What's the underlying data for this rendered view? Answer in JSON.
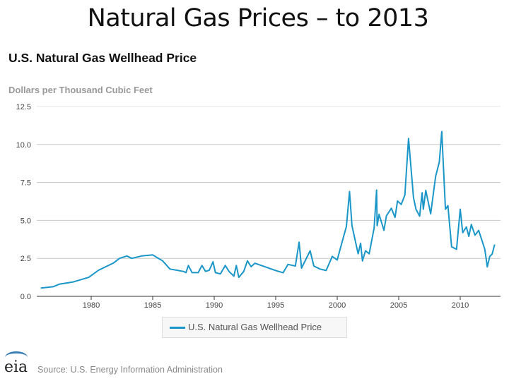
{
  "slide_title": "Natural Gas Prices – to 2013",
  "footer": {
    "logo_text": "eia",
    "source": "Source: U.S. Energy Information Administration"
  },
  "chart_data": {
    "type": "line",
    "title": "U.S. Natural Gas Wellhead Price",
    "ylabel": "Dollars per Thousand Cubic Feet",
    "xlabel": "",
    "xlim": [
      1976,
      2012.8
    ],
    "ylim": [
      0,
      12.5
    ],
    "yticks": [
      "0.0",
      "2.5",
      "5.0",
      "7.5",
      "10.0",
      "12.5"
    ],
    "xticks": [
      "1980",
      "1985",
      "1990",
      "1995",
      "2000",
      "2005",
      "2010"
    ],
    "grid": true,
    "legend_placement": "bottom-center",
    "color": "#1a96c8",
    "series": [
      {
        "name": "U.S. Natural Gas Wellhead Price",
        "x": [
          1975.9,
          1976.9,
          1977.4,
          1978.5,
          1979.8,
          1980.6,
          1981.8,
          1982.3,
          1982.9,
          1983.3,
          1984.1,
          1985.0,
          1985.8,
          1986.4,
          1987.5,
          1987.7,
          1987.9,
          1988.2,
          1988.7,
          1989.0,
          1989.3,
          1989.6,
          1989.9,
          1990.1,
          1990.5,
          1990.9,
          1991.2,
          1991.6,
          1991.8,
          1992.0,
          1992.4,
          1992.7,
          1993.0,
          1993.3,
          1995.0,
          1995.6,
          1996.0,
          1996.6,
          1996.9,
          1997.1,
          1997.8,
          1998.1,
          1998.6,
          1999.1,
          1999.6,
          2000.0,
          2000.5,
          2000.75,
          2001.0,
          2001.2,
          2001.7,
          2001.9,
          2002.05,
          2002.3,
          2002.6,
          2003.0,
          2003.2,
          2003.25,
          2003.4,
          2003.8,
          2004.0,
          2004.4,
          2004.7,
          2004.9,
          2005.2,
          2005.5,
          2005.8,
          2006.2,
          2006.4,
          2006.7,
          2006.9,
          2007.0,
          2007.2,
          2007.6,
          2008.0,
          2008.3,
          2008.5,
          2008.8,
          2009.0,
          2009.3,
          2009.7,
          2010.0,
          2010.2,
          2010.5,
          2010.7,
          2010.9,
          2011.2,
          2011.5,
          2012.0,
          2012.2,
          2012.4,
          2012.6,
          2012.8
        ],
        "y": [
          0.55,
          0.63,
          0.8,
          0.94,
          1.25,
          1.72,
          2.19,
          2.5,
          2.66,
          2.5,
          2.66,
          2.73,
          2.34,
          1.8,
          1.64,
          1.56,
          2.03,
          1.56,
          1.56,
          2.03,
          1.64,
          1.72,
          2.27,
          1.56,
          1.48,
          2.03,
          1.64,
          1.33,
          2.03,
          1.25,
          1.64,
          2.34,
          1.95,
          2.18,
          1.7,
          1.55,
          2.1,
          2.0,
          3.57,
          1.86,
          3.0,
          2.0,
          1.8,
          1.7,
          2.63,
          2.4,
          3.88,
          4.6,
          6.9,
          4.65,
          2.8,
          3.5,
          2.33,
          3.0,
          2.8,
          4.5,
          7.0,
          4.65,
          5.4,
          4.35,
          5.3,
          5.8,
          5.2,
          6.28,
          6.05,
          6.67,
          10.4,
          6.5,
          5.74,
          5.28,
          6.82,
          5.74,
          6.98,
          5.43,
          7.9,
          8.84,
          10.85,
          5.74,
          5.97,
          3.26,
          3.1,
          5.74,
          4.19,
          4.57,
          3.95,
          4.73,
          4.03,
          4.34,
          3.1,
          1.94,
          2.63,
          2.79,
          3.41
        ]
      }
    ]
  }
}
